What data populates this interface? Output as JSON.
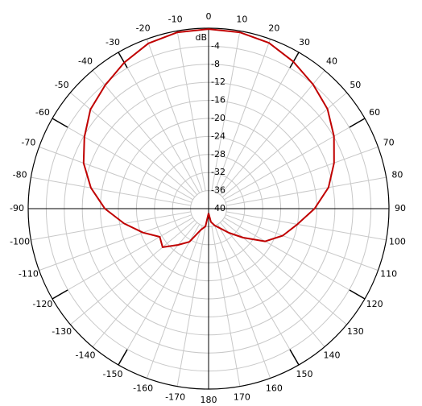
{
  "chart_data": {
    "type": "polar",
    "r_unit": "dB",
    "angles": [
      -180,
      -170,
      -160,
      -150,
      -140,
      -130,
      -120,
      -110,
      -100,
      -90,
      -80,
      -70,
      -60,
      -50,
      -40,
      -30,
      -20,
      -10,
      0,
      10,
      20,
      30,
      40,
      50,
      60,
      70,
      80,
      90,
      100,
      110,
      120,
      130,
      140,
      150,
      160,
      170,
      180
    ],
    "values": [
      -39,
      -36,
      -35,
      -31.5,
      -29.5,
      -26.7,
      -27.5,
      -24.5,
      -21,
      -17,
      -13.5,
      -10.5,
      -8.2,
      -5.8,
      -4.3,
      -2.6,
      -1.0,
      -0.3,
      -0.2,
      -0.3,
      -0.9,
      -2.4,
      -4,
      -5.6,
      -7.9,
      -10.4,
      -13,
      -16.5,
      -20,
      -22.5,
      -25.5,
      -30,
      -33,
      -35,
      -36,
      -37,
      -39
    ],
    "color": "#c00000",
    "rlim": [
      -40,
      0
    ],
    "rticks": [
      -40,
      -36,
      -32,
      -28,
      -24,
      -20,
      -16,
      -12,
      -8,
      -4
    ],
    "thetaticks": [
      -170,
      -160,
      -150,
      -140,
      -130,
      -120,
      -110,
      -100,
      -90,
      -80,
      -70,
      -60,
      -50,
      -40,
      -30,
      -20,
      -10,
      0,
      10,
      20,
      30,
      40,
      50,
      60,
      70,
      80,
      90,
      100,
      110,
      120,
      130,
      140,
      150,
      160,
      170,
      180
    ]
  }
}
